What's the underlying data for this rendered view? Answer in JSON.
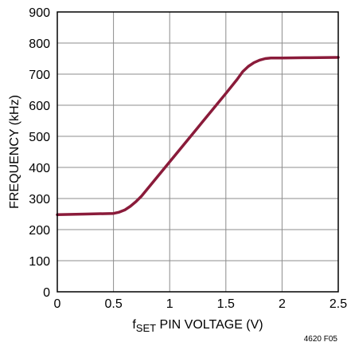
{
  "chart_data": {
    "type": "line",
    "xlabel": {
      "main": "f",
      "sub": "SET",
      "rest": " PIN VOLTAGE (V)"
    },
    "ylabel": "FREQUENCY (kHz)",
    "xlim": [
      0,
      2.5
    ],
    "ylim": [
      0,
      900
    ],
    "xticks": [
      0,
      0.5,
      1,
      1.5,
      2,
      2.5
    ],
    "xtick_labels": [
      "0",
      "0.5",
      "1",
      "1.5",
      "2",
      "2.5"
    ],
    "yticks": [
      0,
      100,
      200,
      300,
      400,
      500,
      600,
      700,
      800,
      900
    ],
    "ytick_labels": [
      "0",
      "100",
      "200",
      "300",
      "400",
      "500",
      "600",
      "700",
      "800",
      "900"
    ],
    "grid": true,
    "series": [
      {
        "color": "#8a1b3a",
        "x": [
          0,
          0.25,
          0.5,
          0.55,
          0.6,
          0.65,
          0.7,
          0.75,
          1.0,
          1.25,
          1.5,
          1.6,
          1.65,
          1.7,
          1.75,
          1.8,
          1.85,
          1.9,
          2.0,
          2.25,
          2.5
        ],
        "y": [
          248,
          250,
          252,
          256,
          263,
          275,
          290,
          308,
          418,
          528,
          638,
          683,
          708,
          725,
          737,
          745,
          750,
          752,
          752,
          753,
          754
        ]
      }
    ],
    "annotation": "4620 F05"
  }
}
